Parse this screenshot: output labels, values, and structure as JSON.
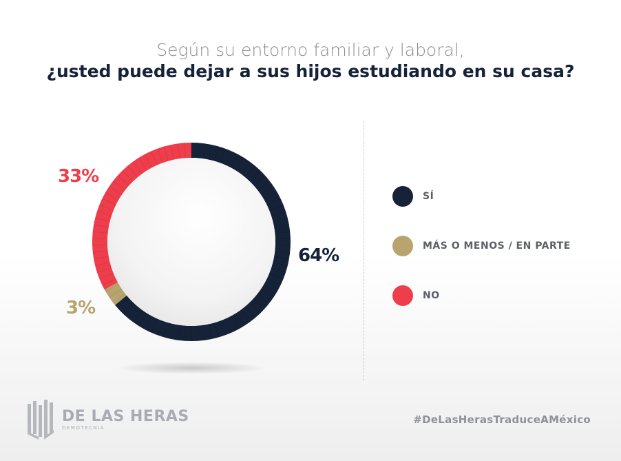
{
  "title": {
    "line1": "Según su entorno familiar y laboral,",
    "line2": "¿usted puede dejar a sus hijos estudiando en su casa?"
  },
  "chart_data": {
    "type": "pie",
    "title": "Según su entorno familiar y laboral, ¿usted puede dejar a sus hijos estudiando en su casa?",
    "categories": [
      "SÍ",
      "MÁS O MENOS / EN PARTE",
      "NO"
    ],
    "values": [
      64,
      3,
      33
    ],
    "value_labels": [
      "64%",
      "3%",
      "33%"
    ],
    "colors": [
      "#152238",
      "#b8a46e",
      "#ee3d4b"
    ],
    "legend_position": "right",
    "donut": true
  },
  "legend": {
    "items": [
      {
        "label": "SÍ",
        "color": "#152238"
      },
      {
        "label": "MÁS O MENOS / EN PARTE",
        "color": "#b8a46e"
      },
      {
        "label": "NO",
        "color": "#ee3d4b"
      }
    ]
  },
  "brand": {
    "name": "DE LAS HERAS",
    "sub": "DEMOTECNIA",
    "hashtag": "#DeLasHerasTraduceAMéxico"
  }
}
